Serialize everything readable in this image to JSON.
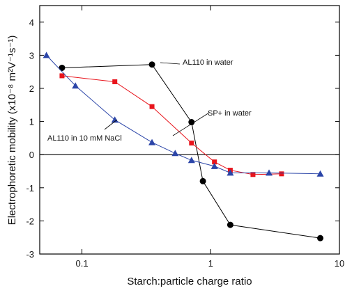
{
  "chart_data": {
    "type": "line",
    "xlabel": "Starch:particle charge ratio",
    "ylabel": "Electrophoretic mobility (x10⁻⁸ m²V⁻¹s⁻¹)",
    "xlog": true,
    "xlim": [
      0.047,
      10
    ],
    "xticks": [
      0.1,
      1,
      10
    ],
    "ylim": [
      -3,
      4.5
    ],
    "yticks": [
      -3,
      -2,
      -1,
      0,
      1,
      2,
      3,
      4
    ],
    "zero_line": true,
    "series": [
      {
        "name": "AL110 in water",
        "color": "#000000",
        "marker": "circle",
        "x": [
          0.07,
          0.35,
          0.71,
          0.87,
          1.42,
          7.1
        ],
        "values": [
          2.62,
          2.72,
          0.98,
          -0.8,
          -2.12,
          -2.52
        ]
      },
      {
        "name": "SP+ in water",
        "color": "#e8141c",
        "marker": "square",
        "x": [
          0.07,
          0.18,
          0.35,
          0.71,
          1.07,
          1.42,
          2.13,
          3.55
        ],
        "values": [
          2.38,
          2.2,
          1.45,
          0.35,
          -0.22,
          -0.47,
          -0.6,
          -0.58
        ]
      },
      {
        "name": "AL110 in 10 mM NaCl",
        "color": "#2b45a8",
        "marker": "triangle",
        "x": [
          0.053,
          0.089,
          0.18,
          0.35,
          0.53,
          0.71,
          1.07,
          1.42,
          2.84,
          7.1
        ],
        "values": [
          3.0,
          2.08,
          1.05,
          0.37,
          0.04,
          -0.17,
          -0.35,
          -0.55,
          -0.55,
          -0.58
        ]
      }
    ]
  }
}
